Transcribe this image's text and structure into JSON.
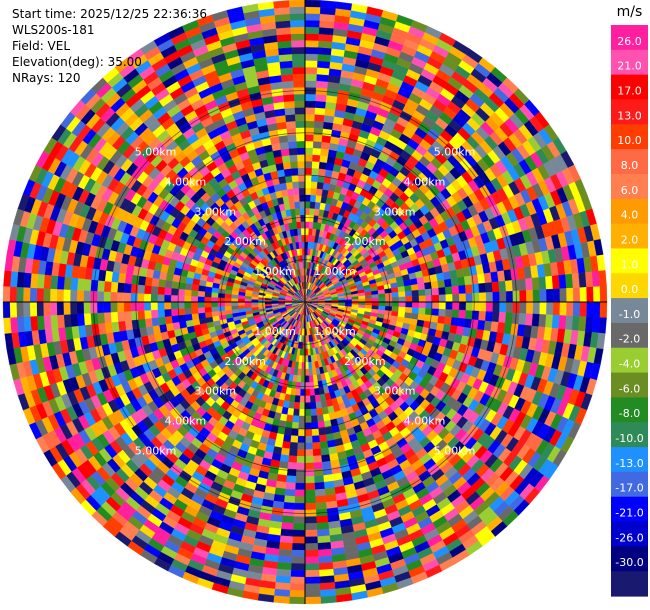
{
  "info": {
    "start_time": "Start time: 2025/12/25 22:36:36",
    "instrument": "WLS200s-181",
    "field": "Field: VEL",
    "elevation": "Elevation(deg): 35.00",
    "nrays": "NRays: 120"
  },
  "chart_data": {
    "type": "heatmap",
    "projection": "polar-ppi",
    "n_rays": 120,
    "range_max_km": 7.14,
    "range_ring_labels": [
      "1.00km",
      "2.00km",
      "3.00km",
      "4.00km",
      "5.00km"
    ],
    "range_ring_km": [
      1,
      2,
      3,
      4,
      5
    ],
    "colorbar": {
      "unit": "m/s",
      "ticks": [
        "26.0",
        "21.0",
        "17.0",
        "13.0",
        "10.0",
        "8.0",
        "6.0",
        "4.0",
        "2.0",
        "1.0",
        "0.0",
        "-1.0",
        "-2.0",
        "-4.0",
        "-6.0",
        "-8.0",
        "-10.0",
        "-13.0",
        "-17.0",
        "-21.0",
        "-26.0",
        "-30.0"
      ],
      "colors": [
        "#ff1f9f",
        "#ff52b0",
        "#ff0000",
        "#ff1a1a",
        "#ff3d00",
        "#ff6a45",
        "#ff7f50",
        "#ff9a00",
        "#ffb000",
        "#ffff00",
        "#ffd700",
        "#778899",
        "#696969",
        "#9acd32",
        "#6b8e23",
        "#228b22",
        "#2e8b57",
        "#1e90ff",
        "#4169e1",
        "#0000ff",
        "#0000cd",
        "#000080",
        "#191970"
      ]
    },
    "grid": true
  }
}
